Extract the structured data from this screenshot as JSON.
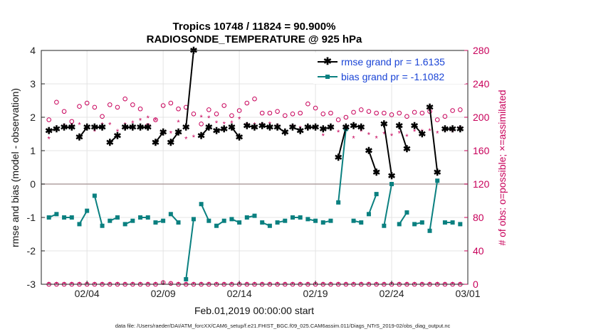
{
  "chart_data": {
    "type": "line",
    "title": "Tropics 10748 / 11824 = 90.900%",
    "subtitle": "RADIOSONDE_TEMPERATURE @ 925 hPa",
    "xlabel": "Feb.01,2019 00:00:00 start",
    "ylabel": "rmse and bias (model - observation)",
    "y2label": "# of obs: o=possible; ×=assimilated",
    "footer": "data file: /Users/raeder/DAI/ATM_forcXX/CAM6_setup/f.e21.FHIST_BGC.f09_025.CAM6assim.011/Diags_NTrS_2019-02/obs_diag_output.nc",
    "xlim": [
      0.5,
      28.5
    ],
    "ylim": [
      -3,
      4
    ],
    "y2lim": [
      0,
      280
    ],
    "x_ticks": [
      3.5,
      8.5,
      13.5,
      18.5,
      23.5,
      28.5
    ],
    "x_tick_labels": [
      "02/04",
      "02/09",
      "02/14",
      "02/19",
      "02/24",
      "03/01"
    ],
    "y_ticks": [
      -3,
      -2,
      -1,
      0,
      1,
      2,
      3,
      4
    ],
    "y_tick_labels": [
      "-3",
      "-2",
      "-1",
      "0",
      "1",
      "2",
      "3",
      "4"
    ],
    "y2_ticks": [
      0,
      40,
      80,
      120,
      160,
      200,
      240,
      280
    ],
    "y2_tick_labels": [
      "0",
      "40",
      "80",
      "120",
      "160",
      "200",
      "240",
      "280"
    ],
    "legend": [
      "rmse grand pr = 1.6135",
      "bias grand pr = -1.1082"
    ],
    "colors": {
      "rmse": "#000000",
      "bias": "#0a8080",
      "obs": "#c8005a",
      "zero": "#b0a0a0"
    },
    "x": [
      1.0,
      1.5,
      2.0,
      2.5,
      3.0,
      3.5,
      4.0,
      4.5,
      5.0,
      5.5,
      6.0,
      6.5,
      7.0,
      7.5,
      8.0,
      8.5,
      9.0,
      9.5,
      10.0,
      10.5,
      11.0,
      11.5,
      12.0,
      12.5,
      13.0,
      13.5,
      14.0,
      14.5,
      15.0,
      15.5,
      16.0,
      16.5,
      17.0,
      17.5,
      18.0,
      18.5,
      19.0,
      19.5,
      20.0,
      20.5,
      21.0,
      21.5,
      22.0,
      22.5,
      23.0,
      23.5,
      24.0,
      24.5,
      25.0,
      25.5,
      26.0,
      26.5,
      27.0,
      27.5,
      28.0
    ],
    "series": [
      {
        "name": "rmse",
        "values": [
          1.6,
          1.65,
          1.7,
          1.7,
          1.4,
          1.7,
          1.7,
          1.7,
          1.25,
          1.45,
          1.7,
          1.7,
          1.7,
          1.7,
          1.25,
          1.55,
          1.25,
          1.55,
          1.7,
          4.0,
          1.45,
          1.7,
          1.6,
          1.65,
          1.7,
          1.4,
          1.75,
          1.7,
          1.75,
          1.7,
          1.7,
          1.55,
          1.7,
          1.6,
          1.7,
          1.7,
          1.65,
          1.7,
          0.8,
          1.7,
          1.75,
          1.7,
          1.0,
          0.35,
          1.8,
          0.25,
          1.75,
          1.05,
          1.75,
          1.5,
          2.3,
          0.35,
          1.65,
          1.65,
          1.65
        ]
      },
      {
        "name": "bias",
        "values": [
          -1.0,
          -0.9,
          -1.0,
          -1.0,
          -1.2,
          -0.8,
          -0.35,
          -1.25,
          -1.1,
          -1.0,
          -1.2,
          -1.1,
          -1.0,
          -1.0,
          -1.15,
          -1.1,
          -0.9,
          -1.15,
          -2.85,
          -1.05,
          -0.6,
          -1.1,
          -1.25,
          -1.1,
          -1.05,
          -1.15,
          -1.0,
          -0.95,
          -1.15,
          -1.25,
          -1.15,
          -1.1,
          -1.0,
          -1.0,
          -1.05,
          -1.1,
          -1.15,
          -1.1,
          -0.55,
          1.65,
          -1.1,
          -1.15,
          -0.9,
          -0.3,
          -1.25,
          0.0,
          -1.2,
          -0.85,
          -1.2,
          -1.15,
          -1.4,
          0.1,
          -1.15,
          -1.15,
          -1.2
        ]
      },
      {
        "name": "obs possible",
        "axis": "right",
        "values": [
          197,
          218,
          207,
          195,
          213,
          217,
          212,
          201,
          215,
          212,
          222,
          215,
          210,
          190,
          197,
          214,
          217,
          210,
          212,
          204,
          192,
          209,
          204,
          214,
          202,
          208,
          217,
          222,
          205,
          205,
          207,
          202,
          204,
          205,
          216,
          211,
          204,
          205,
          197,
          200,
          206,
          209,
          207,
          205,
          205,
          203,
          205,
          201,
          206,
          205,
          207,
          197,
          201,
          208,
          209
        ]
      },
      {
        "name": "obs assimilated",
        "axis": "right",
        "values": [
          174,
          186,
          190,
          189,
          191,
          185,
          183,
          191,
          191,
          183,
          191,
          193,
          196,
          199,
          196,
          180,
          181,
          194,
          174,
          176,
          200,
          199,
          193,
          192,
          193,
          198,
          191,
          191,
          191,
          192,
          190,
          182,
          189,
          187,
          185,
          187,
          178,
          185,
          182,
          184,
          175,
          183,
          179,
          175,
          180,
          178,
          181,
          177,
          183,
          183,
          184,
          181,
          183,
          182,
          187
        ]
      },
      {
        "name": "obs bottom possible",
        "axis": "right",
        "values": [
          0,
          0,
          0,
          0,
          0,
          0,
          0,
          0,
          0,
          0,
          0,
          0,
          0,
          0,
          0,
          2,
          1,
          0,
          0,
          0,
          0,
          0,
          0,
          0,
          0,
          0,
          0,
          0,
          0,
          0,
          0,
          0,
          0,
          0,
          0,
          0,
          0,
          0,
          0,
          0,
          0,
          0,
          0,
          0,
          0,
          0,
          0,
          0,
          0,
          0,
          0,
          0,
          0,
          0,
          0
        ]
      },
      {
        "name": "obs bottom assimilated",
        "axis": "right",
        "values": [
          0,
          0,
          0,
          0,
          0,
          0,
          0,
          0,
          0,
          0,
          0,
          0,
          0,
          0,
          0,
          0,
          0,
          0,
          0,
          0,
          0,
          0,
          0,
          0,
          0,
          0,
          0,
          0,
          0,
          0,
          0,
          0,
          0,
          0,
          0,
          0,
          0,
          0,
          0,
          0,
          0,
          0,
          0,
          0,
          0,
          0,
          0,
          0,
          0,
          0,
          0,
          0,
          0,
          0,
          0
        ]
      }
    ]
  }
}
